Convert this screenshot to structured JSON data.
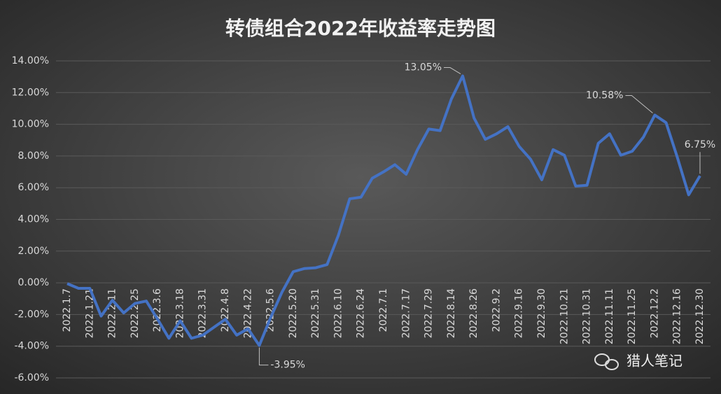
{
  "chart_data": {
    "type": "line",
    "title": "转债组合2022年收益率走势图",
    "watermark": "猎人笔记",
    "categories": [
      "2022.1.7",
      null,
      "2022.1.21",
      null,
      "2022.2.11",
      null,
      "2022.2.25",
      null,
      "2022.3.6",
      null,
      "2022.3.18",
      null,
      "2022.3.31",
      null,
      "2022.4.8",
      null,
      "2022.4.22",
      null,
      "2022.5.6",
      null,
      "2022.5.20",
      null,
      "2022.5.31",
      null,
      "2022.6.10",
      null,
      "2022.6.24",
      null,
      "2022.7.1",
      null,
      "2022.7.17",
      null,
      "2022.7.29",
      null,
      "2022.8.14",
      null,
      "2022.8.26",
      null,
      "2022.9.2",
      null,
      "2022.9.16",
      null,
      "2022.9.30",
      null,
      "2022.10.21",
      null,
      "2022.10.31",
      null,
      "2022.11.11",
      null,
      "2022.11.25",
      null,
      "2022.12.2",
      null,
      "2022.12.16",
      null,
      "2022.12.30"
    ],
    "series": [
      {
        "name": "收益率",
        "color": "#4472c4",
        "values": [
          -0.05,
          -0.35,
          -0.35,
          -2.1,
          -1.1,
          -1.9,
          -1.3,
          -1.15,
          -2.3,
          -3.5,
          -2.4,
          -3.5,
          -3.3,
          -2.8,
          -2.3,
          -3.3,
          -2.9,
          -3.95,
          -2.2,
          -0.6,
          0.7,
          0.9,
          0.95,
          1.15,
          3.0,
          5.3,
          5.4,
          6.6,
          7.0,
          7.45,
          6.85,
          8.4,
          9.7,
          9.6,
          11.6,
          13.05,
          10.4,
          9.05,
          9.4,
          9.85,
          8.6,
          7.8,
          6.5,
          8.4,
          8.05,
          6.1,
          6.15,
          8.8,
          9.4,
          8.05,
          8.3,
          9.2,
          10.58,
          10.1,
          7.9,
          5.55,
          6.75
        ],
        "value_labels": [
          null,
          null,
          null,
          null,
          null,
          null,
          null,
          null,
          null,
          null,
          null,
          null,
          null,
          null,
          null,
          null,
          null,
          "-3.95%",
          null,
          null,
          null,
          null,
          null,
          null,
          null,
          null,
          null,
          null,
          null,
          null,
          null,
          null,
          null,
          null,
          null,
          "13.05%",
          null,
          null,
          null,
          null,
          null,
          null,
          null,
          null,
          null,
          null,
          null,
          null,
          null,
          null,
          null,
          null,
          "10.58%",
          null,
          null,
          null,
          "6.75%"
        ]
      }
    ],
    "ylim": [
      -6,
      14
    ],
    "yticks": [
      {
        "value": -6,
        "label": "-6.00%"
      },
      {
        "value": -4,
        "label": "-4.00%"
      },
      {
        "value": -2,
        "label": "-2.00%"
      },
      {
        "value": 0,
        "label": "0.00%"
      },
      {
        "value": 2,
        "label": "2.00%"
      },
      {
        "value": 4,
        "label": "4.00%"
      },
      {
        "value": 6,
        "label": "6.00%"
      },
      {
        "value": 8,
        "label": "8.00%"
      },
      {
        "value": 10,
        "label": "10.00%"
      },
      {
        "value": 12,
        "label": "12.00%"
      },
      {
        "value": 14,
        "label": "14.00%"
      }
    ],
    "grid": true
  }
}
